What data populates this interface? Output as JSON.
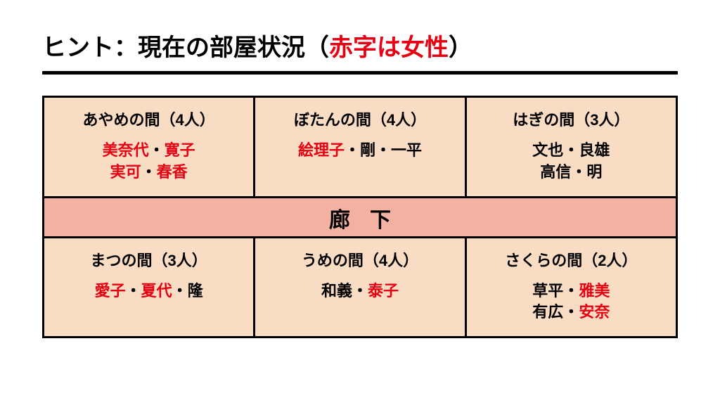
{
  "title_prefix": "ヒント：現在の部屋状況（",
  "title_highlight": "赤字は女性",
  "title_suffix": "）",
  "corridor_label": "廊下",
  "separator": "・",
  "colors": {
    "female": "#e60012",
    "male": "#000000",
    "room_bg": "#f9dcc4",
    "corridor_bg": "#f3b1a2",
    "border": "#000000",
    "page_bg": "#ffffff"
  },
  "layout": {
    "rows": 2,
    "cols": 3,
    "corridor_between_rows": true
  },
  "rooms": {
    "top": [
      {
        "title": "あやめの間（4人）",
        "lines": [
          [
            {
              "name": "美奈代",
              "g": "f"
            },
            {
              "name": "寛子",
              "g": "f"
            }
          ],
          [
            {
              "name": "実可",
              "g": "f"
            },
            {
              "name": "春香",
              "g": "f"
            }
          ]
        ]
      },
      {
        "title": "ぼたんの間（4人）",
        "lines": [
          [
            {
              "name": "絵理子",
              "g": "f"
            },
            {
              "name": "剛",
              "g": "m"
            },
            {
              "name": "一平",
              "g": "m"
            }
          ]
        ]
      },
      {
        "title": "はぎの間（3人）",
        "lines": [
          [
            {
              "name": "文也",
              "g": "m"
            },
            {
              "name": "良雄",
              "g": "m"
            }
          ],
          [
            {
              "name": "高信",
              "g": "m"
            },
            {
              "name": "明",
              "g": "m"
            }
          ]
        ]
      }
    ],
    "bottom": [
      {
        "title": "まつの間（3人）",
        "lines": [
          [
            {
              "name": "愛子",
              "g": "f"
            },
            {
              "name": "夏代",
              "g": "f"
            },
            {
              "name": "隆",
              "g": "m"
            }
          ]
        ]
      },
      {
        "title": "うめの間（4人）",
        "lines": [
          [
            {
              "name": "和義",
              "g": "m"
            },
            {
              "name": "泰子",
              "g": "f"
            }
          ]
        ]
      },
      {
        "title": "さくらの間（2人）",
        "lines": [
          [
            {
              "name": "草平",
              "g": "m"
            },
            {
              "name": "雅美",
              "g": "f"
            }
          ],
          [
            {
              "name": "有広",
              "g": "m"
            },
            {
              "name": "安奈",
              "g": "f"
            }
          ]
        ]
      }
    ]
  }
}
